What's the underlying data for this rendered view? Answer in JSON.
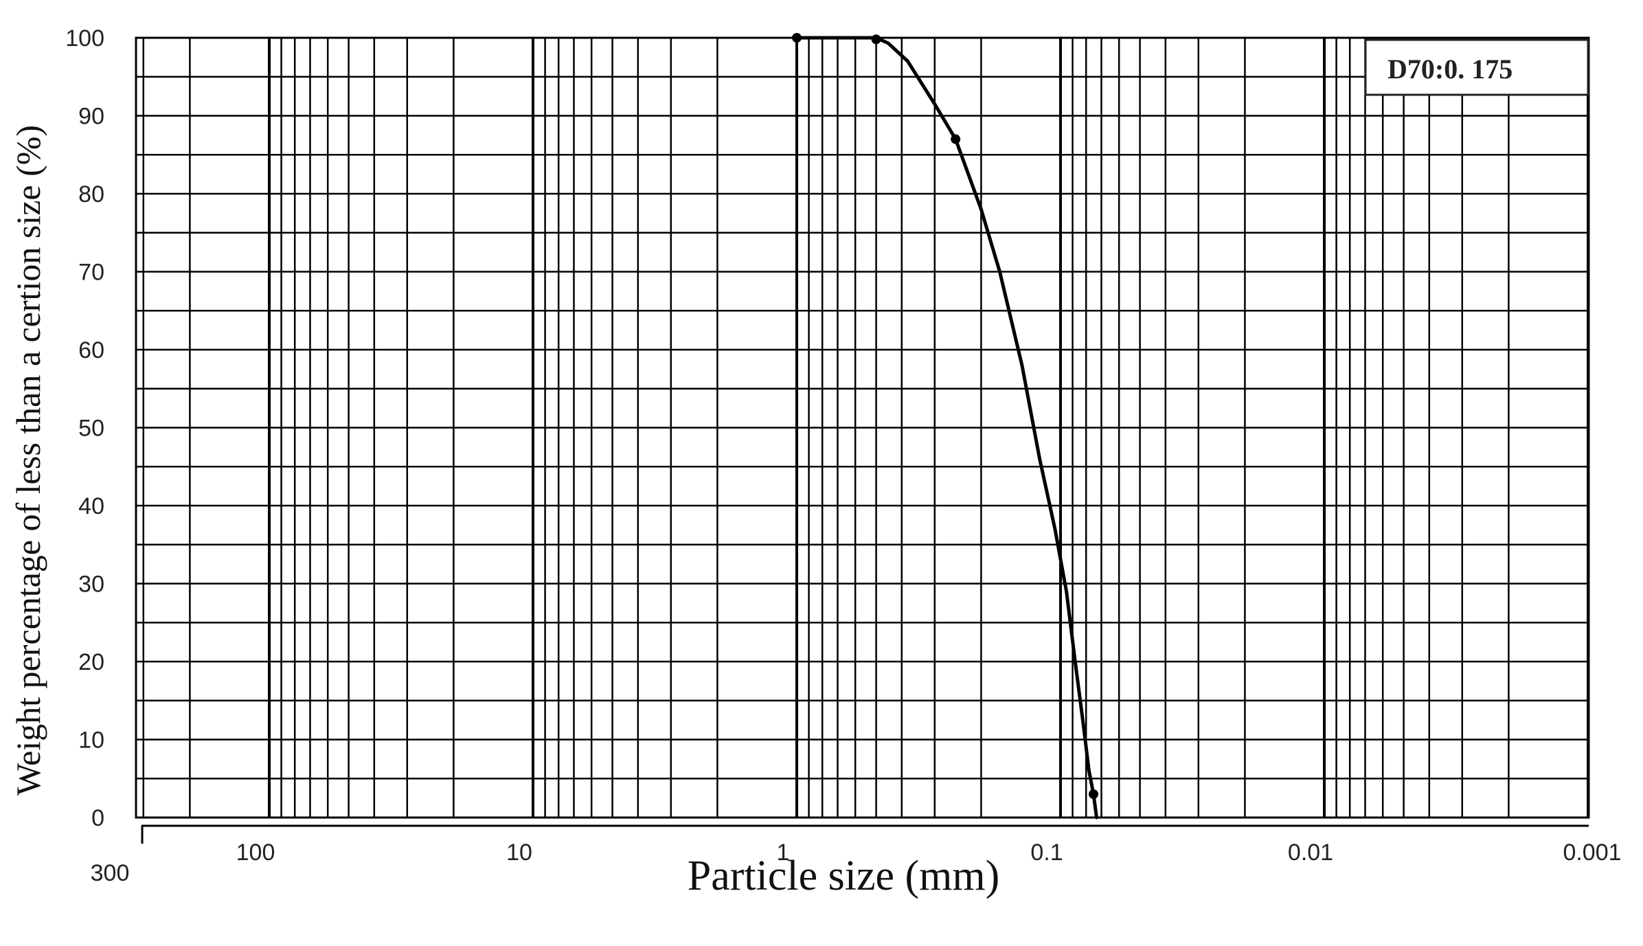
{
  "chart_data": {
    "type": "line",
    "title": "",
    "xlabel": "Particle size (mm)",
    "ylabel": "Weight percentage of less than a certion size (%)",
    "x_scale": "log",
    "x_reversed": true,
    "xlim": [
      300,
      0.001
    ],
    "ylim": [
      0,
      100
    ],
    "grid": true,
    "legend": "none",
    "x_ticks": [
      {
        "value": 300,
        "label": "300"
      },
      {
        "value": 100,
        "label": "100"
      },
      {
        "value": 10,
        "label": "10"
      },
      {
        "value": 1,
        "label": "1"
      },
      {
        "value": 0.1,
        "label": "0.1"
      },
      {
        "value": 0.01,
        "label": "0.01"
      },
      {
        "value": 0.001,
        "label": "0.001"
      }
    ],
    "y_ticks": [
      0,
      10,
      20,
      30,
      40,
      50,
      60,
      70,
      80,
      90,
      100
    ],
    "series": [
      {
        "color": "#000000",
        "points": [
          {
            "x": 1.0,
            "y": 100
          },
          {
            "x": 0.5,
            "y": 99.8
          },
          {
            "x": 0.25,
            "y": 87
          },
          {
            "x": 0.075,
            "y": 3
          }
        ],
        "curve": [
          [
            1.0,
            100
          ],
          [
            0.5,
            100
          ],
          [
            0.45,
            99.3
          ],
          [
            0.38,
            97
          ],
          [
            0.3,
            91.5
          ],
          [
            0.25,
            87
          ],
          [
            0.2,
            78
          ],
          [
            0.17,
            70
          ],
          [
            0.14,
            58
          ],
          [
            0.12,
            46
          ],
          [
            0.105,
            37
          ],
          [
            0.095,
            29
          ],
          [
            0.088,
            20
          ],
          [
            0.082,
            12
          ],
          [
            0.078,
            6
          ],
          [
            0.075,
            3
          ],
          [
            0.073,
            0
          ]
        ]
      }
    ],
    "annotations": [
      {
        "text": "D70:0. 175",
        "position": "top-right"
      }
    ]
  }
}
